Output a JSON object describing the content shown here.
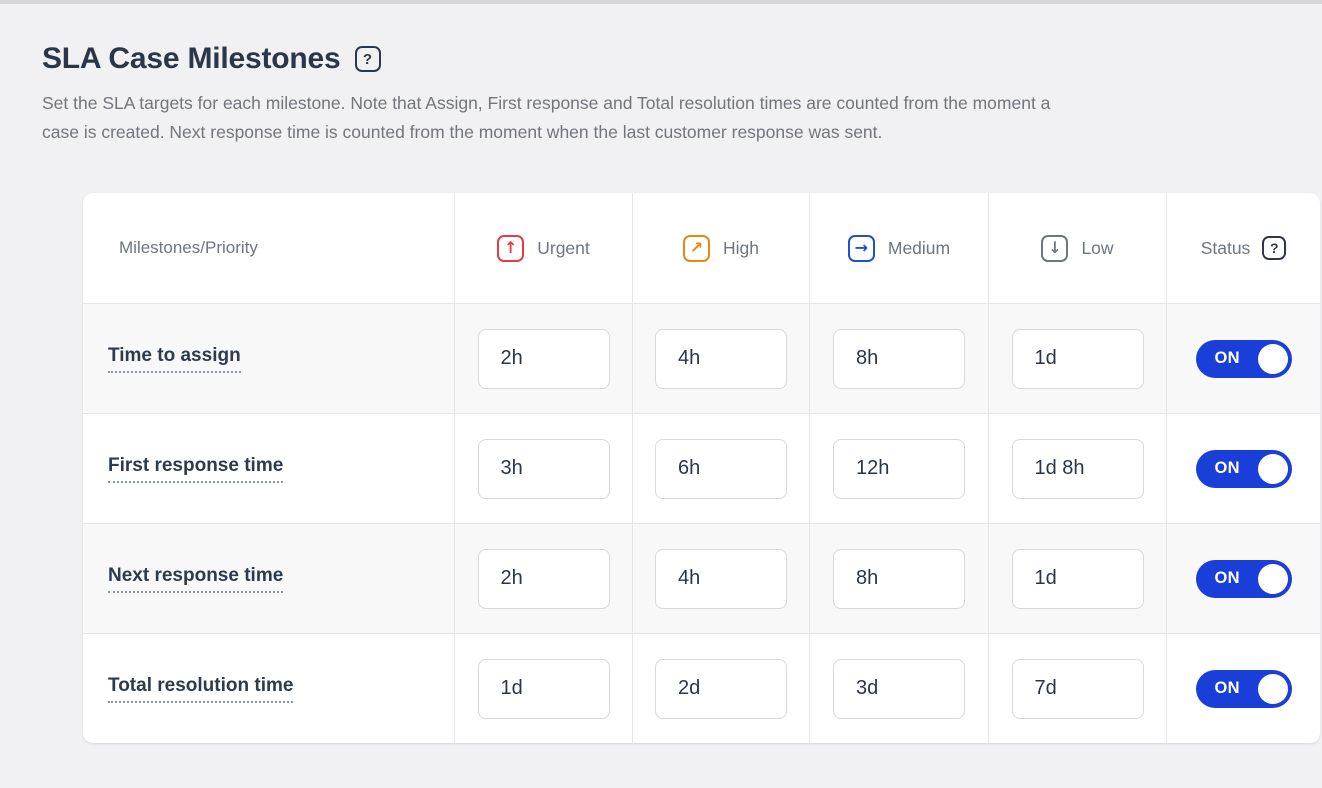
{
  "page": {
    "title": "SLA Case Milestones",
    "title_help_icon": "?",
    "subtitle": "Set the SLA targets for each milestone. Note that Assign, First response and Total resolution times are counted from the moment a\ncase is created. Next response time is counted from the moment when the last customer response was sent."
  },
  "table": {
    "headers": {
      "milestones": "Milestones/Priority",
      "status": "Status",
      "status_help_icon": "?"
    },
    "priorities": [
      {
        "label": "Urgent",
        "icon": "arrow-up-icon",
        "glyph": "↑",
        "color": "#e43d40"
      },
      {
        "label": "High",
        "icon": "arrow-up-right-icon",
        "glyph": "↗",
        "color": "#ee8411"
      },
      {
        "label": "Medium",
        "icon": "arrow-right-icon",
        "glyph": "→",
        "color": "#1d4fd8"
      },
      {
        "label": "Low",
        "icon": "arrow-down-icon",
        "glyph": "↓",
        "color": "#6e7780"
      }
    ],
    "rows": [
      {
        "label": "Time to assign",
        "values": [
          "2h",
          "4h",
          "8h",
          "1d"
        ],
        "status": "ON"
      },
      {
        "label": "First response time",
        "values": [
          "3h",
          "6h",
          "12h",
          "1d 8h"
        ],
        "status": "ON"
      },
      {
        "label": "Next response time",
        "values": [
          "2h",
          "4h",
          "8h",
          "1d"
        ],
        "status": "ON"
      },
      {
        "label": "Total resolution time",
        "values": [
          "1d",
          "2d",
          "3d",
          "7d"
        ],
        "status": "ON"
      }
    ]
  },
  "colors": {
    "toggle_on": "#1a3fd8",
    "page_background": "#f1f1f4",
    "card_background": "#ffffff",
    "row_alt_background": "#f8f8f9",
    "table_border": "#e6e6e9",
    "title_text": "#2b3648",
    "subtitle_text": "#73757d"
  }
}
